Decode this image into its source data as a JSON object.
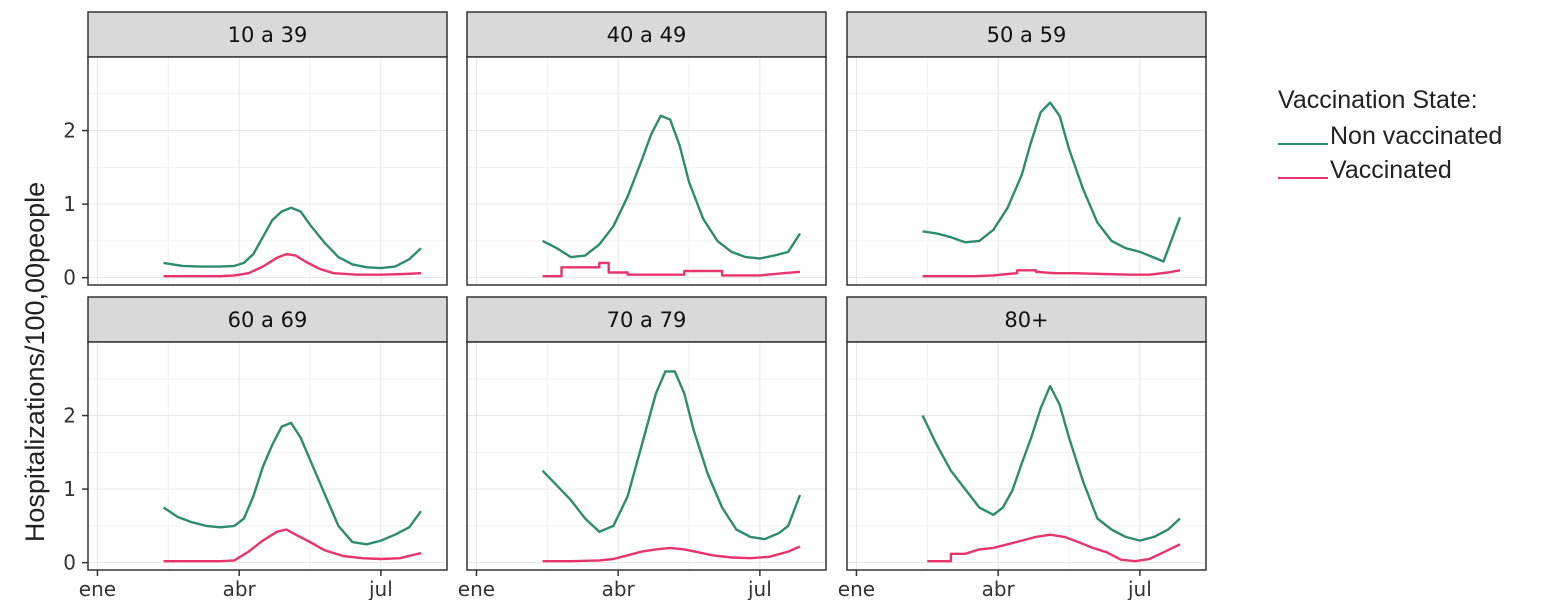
{
  "chart_data": {
    "type": "line",
    "ylabel": "Hospitalizations/100,00people",
    "xlabel": "",
    "x_ticks": [
      "ene",
      "abr",
      "jul"
    ],
    "y_ticks": [
      0,
      1,
      2
    ],
    "ylim": [
      -0.1,
      3.0
    ],
    "x_unit": "month index (ene = 1)",
    "xlim": [
      0.8,
      8.4
    ],
    "grid": true,
    "legend_position": "right",
    "legend": {
      "title": "Vaccination State:",
      "items": [
        {
          "label": "Non vaccinated",
          "color": "#2e8b6e"
        },
        {
          "label": "Vaccinated",
          "color": "#e8336b"
        }
      ]
    },
    "panels": [
      {
        "title": "10 a 39",
        "series": [
          {
            "name": "Non vaccinated",
            "x": [
              2.4,
              2.8,
              3.2,
              3.6,
              3.9,
              4.1,
              4.3,
              4.5,
              4.7,
              4.9,
              5.1,
              5.3,
              5.5,
              5.8,
              6.1,
              6.4,
              6.7,
              7.0,
              7.3,
              7.6,
              7.85
            ],
            "y": [
              0.2,
              0.16,
              0.15,
              0.15,
              0.16,
              0.2,
              0.32,
              0.55,
              0.78,
              0.9,
              0.95,
              0.9,
              0.72,
              0.48,
              0.28,
              0.18,
              0.14,
              0.13,
              0.15,
              0.25,
              0.4
            ]
          },
          {
            "name": "Vaccinated",
            "x": [
              2.4,
              3.0,
              3.6,
              3.9,
              4.2,
              4.5,
              4.8,
              5.0,
              5.2,
              5.4,
              5.7,
              6.0,
              6.5,
              7.0,
              7.5,
              7.85
            ],
            "y": [
              0.02,
              0.02,
              0.02,
              0.03,
              0.06,
              0.15,
              0.27,
              0.32,
              0.3,
              0.22,
              0.12,
              0.06,
              0.04,
              0.04,
              0.05,
              0.06
            ]
          }
        ]
      },
      {
        "title": "40 a 49",
        "series": [
          {
            "name": "Non vaccinated",
            "x": [
              2.4,
              2.7,
              3.0,
              3.3,
              3.6,
              3.9,
              4.2,
              4.5,
              4.7,
              4.9,
              5.1,
              5.3,
              5.5,
              5.8,
              6.1,
              6.4,
              6.7,
              7.0,
              7.3,
              7.6,
              7.85
            ],
            "y": [
              0.5,
              0.4,
              0.28,
              0.3,
              0.45,
              0.7,
              1.1,
              1.6,
              1.95,
              2.2,
              2.15,
              1.8,
              1.3,
              0.8,
              0.5,
              0.35,
              0.28,
              0.26,
              0.3,
              0.35,
              0.6
            ]
          },
          {
            "name": "Vaccinated",
            "x": [
              2.4,
              2.8,
              2.8,
              3.6,
              3.6,
              3.8,
              3.8,
              4.2,
              4.2,
              5.4,
              5.4,
              6.2,
              6.2,
              7.0,
              7.5,
              7.85
            ],
            "y": [
              0.02,
              0.02,
              0.14,
              0.14,
              0.2,
              0.2,
              0.07,
              0.07,
              0.04,
              0.04,
              0.09,
              0.09,
              0.03,
              0.03,
              0.06,
              0.08
            ]
          }
        ]
      },
      {
        "title": "50 a 59",
        "series": [
          {
            "name": "Non vaccinated",
            "x": [
              2.4,
              2.7,
              3.0,
              3.3,
              3.6,
              3.9,
              4.2,
              4.5,
              4.7,
              4.9,
              5.1,
              5.3,
              5.5,
              5.8,
              6.1,
              6.4,
              6.7,
              7.0,
              7.2,
              7.5,
              7.85
            ],
            "y": [
              0.63,
              0.6,
              0.55,
              0.48,
              0.5,
              0.65,
              0.95,
              1.4,
              1.85,
              2.25,
              2.38,
              2.2,
              1.75,
              1.2,
              0.75,
              0.5,
              0.4,
              0.35,
              0.3,
              0.22,
              0.82
            ]
          },
          {
            "name": "Vaccinated",
            "x": [
              2.4,
              3.0,
              3.5,
              3.9,
              4.2,
              4.4,
              4.4,
              4.8,
              4.8,
              5.2,
              5.6,
              6.2,
              6.8,
              7.2,
              7.6,
              7.85
            ],
            "y": [
              0.02,
              0.02,
              0.02,
              0.03,
              0.05,
              0.06,
              0.1,
              0.1,
              0.08,
              0.06,
              0.06,
              0.05,
              0.04,
              0.04,
              0.07,
              0.1
            ]
          }
        ]
      },
      {
        "title": "60 a 69",
        "series": [
          {
            "name": "Non vaccinated",
            "x": [
              2.4,
              2.7,
              3.0,
              3.3,
              3.6,
              3.9,
              4.1,
              4.3,
              4.5,
              4.7,
              4.9,
              5.1,
              5.3,
              5.5,
              5.8,
              6.1,
              6.4,
              6.7,
              7.0,
              7.3,
              7.6,
              7.85
            ],
            "y": [
              0.75,
              0.62,
              0.55,
              0.5,
              0.48,
              0.5,
              0.6,
              0.9,
              1.3,
              1.6,
              1.85,
              1.9,
              1.7,
              1.4,
              0.95,
              0.5,
              0.28,
              0.25,
              0.3,
              0.38,
              0.48,
              0.7
            ]
          },
          {
            "name": "Vaccinated",
            "x": [
              2.4,
              3.0,
              3.6,
              3.9,
              4.2,
              4.5,
              4.8,
              5.0,
              5.2,
              5.5,
              5.8,
              6.2,
              6.6,
              7.0,
              7.4,
              7.85
            ],
            "y": [
              0.02,
              0.02,
              0.02,
              0.03,
              0.15,
              0.3,
              0.42,
              0.45,
              0.38,
              0.28,
              0.17,
              0.09,
              0.06,
              0.05,
              0.06,
              0.13
            ]
          }
        ]
      },
      {
        "title": "70 a 79",
        "series": [
          {
            "name": "Non vaccinated",
            "x": [
              2.4,
              2.7,
              3.0,
              3.3,
              3.6,
              3.9,
              4.2,
              4.5,
              4.8,
              5.0,
              5.2,
              5.4,
              5.6,
              5.9,
              6.2,
              6.5,
              6.8,
              7.1,
              7.4,
              7.6,
              7.85
            ],
            "y": [
              1.25,
              1.05,
              0.85,
              0.6,
              0.42,
              0.5,
              0.9,
              1.6,
              2.3,
              2.6,
              2.6,
              2.3,
              1.8,
              1.2,
              0.75,
              0.45,
              0.35,
              0.32,
              0.4,
              0.5,
              0.92
            ]
          },
          {
            "name": "Vaccinated",
            "x": [
              2.4,
              3.0,
              3.6,
              3.9,
              4.2,
              4.5,
              4.8,
              5.1,
              5.4,
              5.7,
              6.0,
              6.4,
              6.8,
              7.2,
              7.6,
              7.85
            ],
            "y": [
              0.02,
              0.02,
              0.03,
              0.05,
              0.1,
              0.15,
              0.18,
              0.2,
              0.18,
              0.14,
              0.1,
              0.07,
              0.06,
              0.08,
              0.15,
              0.22
            ]
          }
        ]
      },
      {
        "title": "80+",
        "series": [
          {
            "name": "Non vaccinated",
            "x": [
              2.4,
              2.7,
              3.0,
              3.3,
              3.6,
              3.9,
              4.1,
              4.3,
              4.5,
              4.7,
              4.9,
              5.1,
              5.3,
              5.5,
              5.8,
              6.1,
              6.4,
              6.7,
              7.0,
              7.3,
              7.6,
              7.85
            ],
            "y": [
              2.0,
              1.6,
              1.25,
              1.0,
              0.75,
              0.65,
              0.75,
              0.98,
              1.35,
              1.7,
              2.1,
              2.4,
              2.15,
              1.7,
              1.1,
              0.6,
              0.45,
              0.35,
              0.3,
              0.35,
              0.45,
              0.6
            ]
          },
          {
            "name": "Vaccinated",
            "x": [
              2.5,
              3.0,
              3.0,
              3.3,
              3.6,
              3.9,
              4.2,
              4.5,
              4.8,
              5.1,
              5.4,
              5.7,
              6.0,
              6.3,
              6.6,
              6.9,
              7.2,
              7.5,
              7.85
            ],
            "y": [
              0.02,
              0.02,
              0.12,
              0.12,
              0.18,
              0.2,
              0.25,
              0.3,
              0.35,
              0.38,
              0.35,
              0.28,
              0.2,
              0.14,
              0.04,
              0.02,
              0.05,
              0.14,
              0.25
            ]
          }
        ]
      }
    ]
  }
}
